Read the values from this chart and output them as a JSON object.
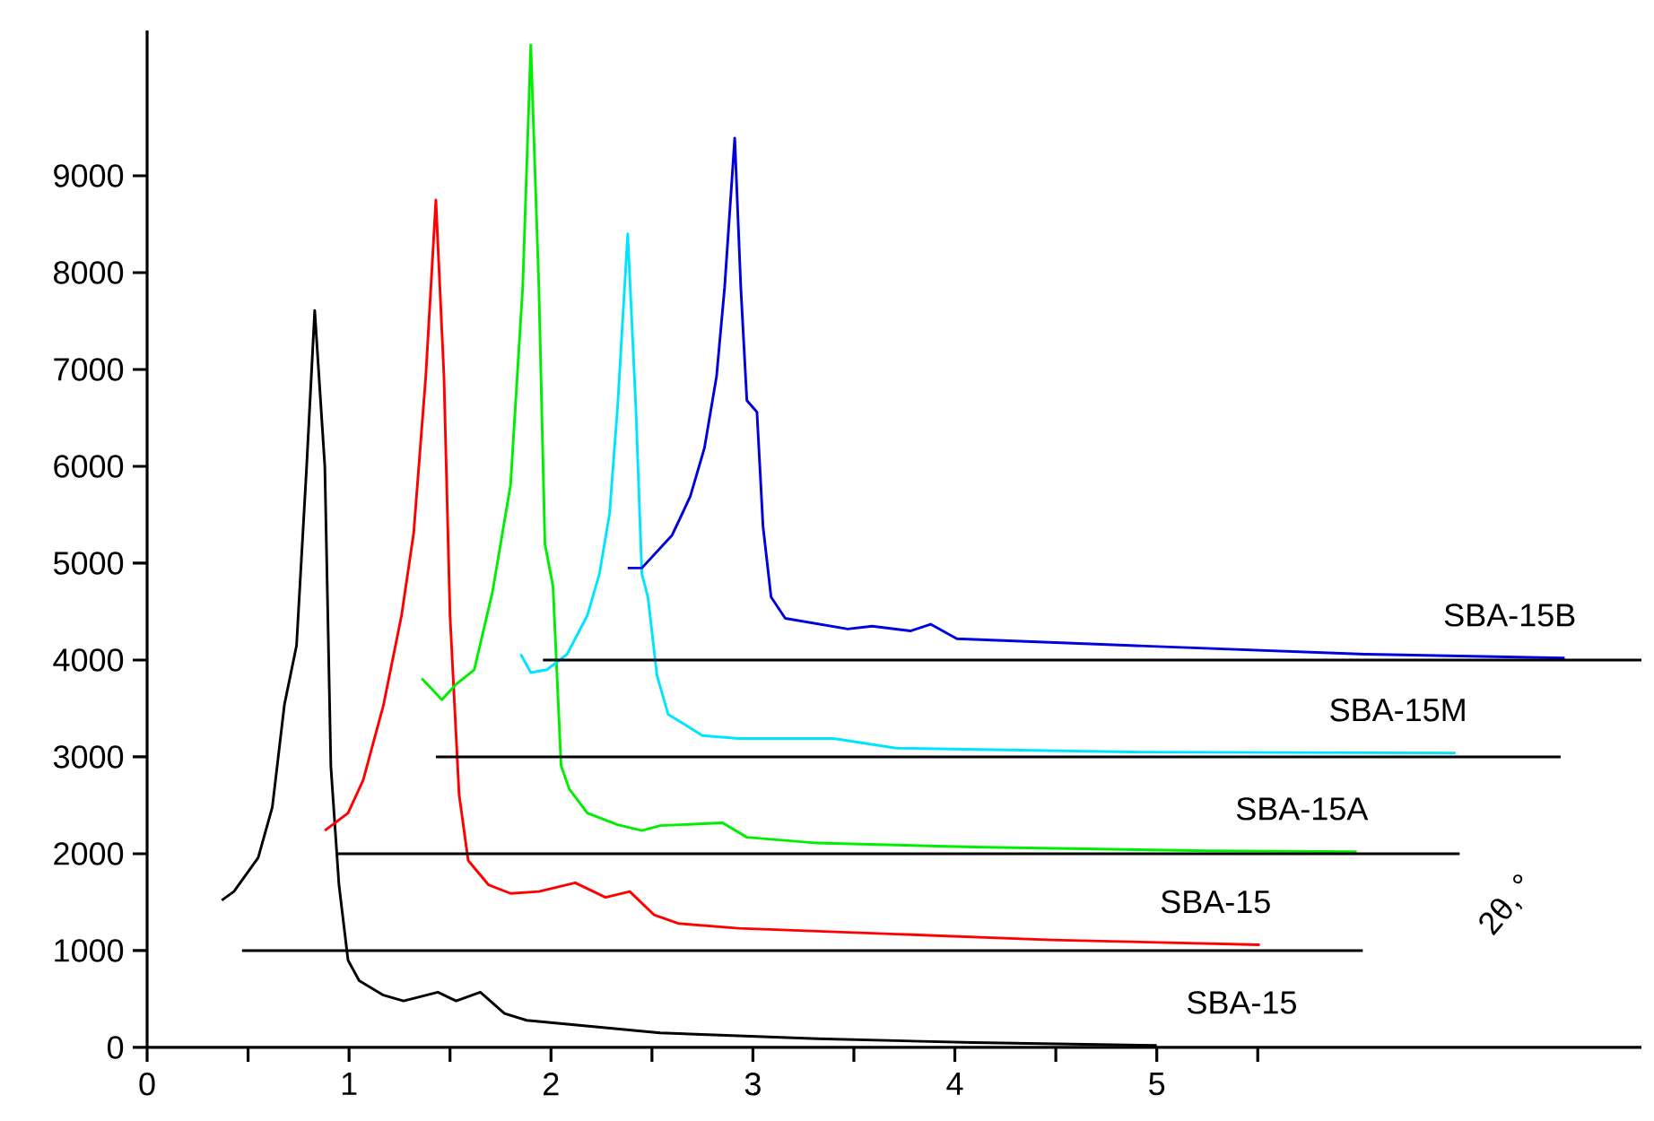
{
  "chart_data": {
    "type": "line",
    "xlabel": "2θ, °",
    "xlim": [
      0,
      7.4
    ],
    "ylim": [
      0,
      10500
    ],
    "xticks": [
      0,
      {
        "value": 0.5,
        "label": null
      },
      1,
      {
        "value": 1.5,
        "label": null
      },
      2,
      {
        "value": 2.5,
        "label": null
      },
      3,
      {
        "value": 3.5,
        "label": null
      },
      4,
      {
        "value": 4.5,
        "label": null
      },
      5,
      {
        "value": 5.5,
        "label": null
      }
    ],
    "yticks": [
      0,
      1000,
      2000,
      3000,
      4000,
      5000,
      6000,
      7000,
      8000,
      9000
    ],
    "marker": "none",
    "line_style": "solid",
    "series": [
      {
        "name": "SBA-15",
        "color": "#000000",
        "x": [
          0.37,
          0.43,
          0.55,
          0.62,
          0.68,
          0.74,
          0.79,
          0.83,
          0.88,
          0.91,
          0.95,
          0.995,
          1.05,
          1.17,
          1.27,
          1.44,
          1.53,
          1.65,
          1.77,
          1.88,
          2.54,
          3.32,
          4.09,
          5.0
        ],
        "values": [
          1520,
          1610,
          1960,
          2480,
          3540,
          4150,
          6000,
          7610,
          6000,
          2900,
          1680,
          900,
          690,
          540,
          480,
          570,
          480,
          570,
          350,
          280,
          150,
          90,
          50,
          20
        ]
      },
      {
        "name": "SBA-15",
        "color": "#ff0000",
        "x": [
          0.88,
          0.995,
          1.07,
          1.17,
          1.26,
          1.32,
          1.38,
          1.43,
          1.47,
          1.5,
          1.545,
          1.59,
          1.69,
          1.8,
          1.94,
          2.12,
          2.27,
          2.39,
          2.51,
          2.63,
          2.93,
          3.71,
          4.48,
          5.51
        ],
        "values": [
          2240,
          2420,
          2760,
          3530,
          4460,
          5310,
          6930,
          8750,
          6930,
          4460,
          2610,
          1930,
          1680,
          1590,
          1610,
          1700,
          1550,
          1610,
          1370,
          1280,
          1230,
          1170,
          1110,
          1060
        ]
      },
      {
        "name": "SBA-15A",
        "color": "#00ee00",
        "x": [
          1.36,
          1.46,
          1.53,
          1.62,
          1.71,
          1.8,
          1.86,
          1.9,
          1.94,
          1.97,
          2.01,
          2.05,
          2.09,
          2.18,
          2.33,
          2.45,
          2.54,
          2.85,
          2.97,
          3.32,
          4.09,
          5.26,
          5.99
        ],
        "values": [
          3810,
          3590,
          3750,
          3900,
          4700,
          5810,
          7850,
          10350,
          7850,
          5200,
          4760,
          2910,
          2670,
          2420,
          2300,
          2240,
          2290,
          2320,
          2170,
          2110,
          2070,
          2030,
          2020
        ]
      },
      {
        "name": "SBA-15M",
        "color": "#00e5ff",
        "x": [
          1.85,
          1.9,
          1.98,
          2.08,
          2.18,
          2.24,
          2.29,
          2.33,
          2.38,
          2.42,
          2.45,
          2.48,
          2.525,
          2.58,
          2.75,
          2.93,
          3.4,
          3.71,
          4.87,
          6.48
        ],
        "values": [
          4060,
          3870,
          3900,
          4060,
          4460,
          4890,
          5510,
          6620,
          8400,
          6620,
          4890,
          4650,
          3840,
          3440,
          3220,
          3190,
          3190,
          3090,
          3050,
          3040
        ]
      },
      {
        "name": "SBA-15B",
        "color": "#0000dd",
        "x": [
          2.38,
          2.45,
          2.6,
          2.69,
          2.76,
          2.82,
          2.86,
          2.91,
          2.94,
          2.97,
          3.02,
          3.05,
          3.09,
          3.16,
          3.47,
          3.59,
          3.78,
          3.88,
          4.01,
          4.87,
          6.03,
          7.02
        ],
        "values": [
          4950,
          4950,
          5290,
          5690,
          6190,
          6930,
          7850,
          9390,
          7850,
          6680,
          6560,
          5380,
          4650,
          4430,
          4320,
          4350,
          4300,
          4370,
          4220,
          4150,
          4060,
          4020
        ]
      },
      {
        "color": "#000000",
        "x": [
          0.47,
          6.02
        ],
        "values": [
          1000,
          1000
        ]
      },
      {
        "color": "#000000",
        "x": [
          0.94,
          6.5
        ],
        "values": [
          2000,
          2000
        ]
      },
      {
        "color": "#000000",
        "x": [
          1.43,
          7.0
        ],
        "values": [
          3000,
          3000
        ]
      },
      {
        "color": "#000000",
        "x": [
          1.96,
          7.4
        ],
        "values": [
          4000,
          4000
        ]
      }
    ]
  }
}
